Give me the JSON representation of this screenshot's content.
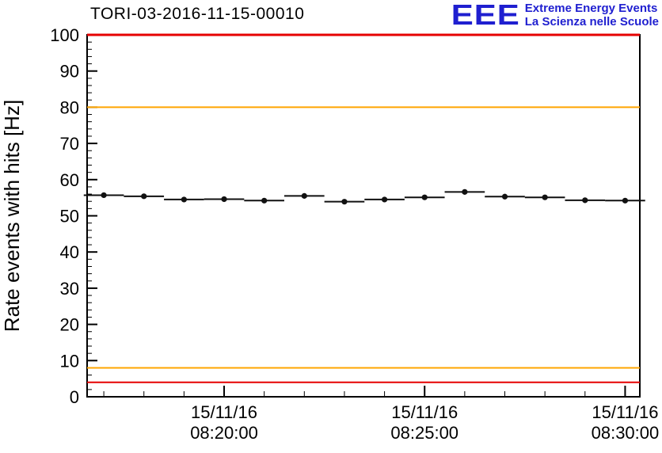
{
  "header": {
    "title": "TORI-03-2016-11-15-00010"
  },
  "logo": {
    "eee_text": "EEE",
    "line1": "Extreme Energy Events",
    "line2": "La Scienza nelle Scuole",
    "color": "#1f1fd0"
  },
  "chart_data": {
    "type": "scatter",
    "title": "TORI-03-2016-11-15-00010",
    "xlabel": "",
    "ylabel": "Rate events with hits [Hz]",
    "ylim": [
      0,
      100
    ],
    "y_major_step": 10,
    "y_minor_step": 2,
    "grid": false,
    "legend": "none",
    "x_domain_seconds": [
      995,
      1822
    ],
    "x_minor_step_seconds": 60,
    "x_ticks": [
      {
        "seconds": 1200,
        "date": "15/11/16",
        "time": "08:20:00"
      },
      {
        "seconds": 1500,
        "date": "15/11/16",
        "time": "08:25:00"
      },
      {
        "seconds": 1800,
        "date": "15/11/16",
        "time": "08:30:00"
      }
    ],
    "thresholds": [
      {
        "value": 100,
        "color": "#e60000",
        "width": 3,
        "label": "upper-red-limit"
      },
      {
        "value": 80,
        "color": "#ffa500",
        "width": 2,
        "label": "upper-orange-limit"
      },
      {
        "value": 8,
        "color": "#ffa500",
        "width": 2,
        "label": "lower-orange-limit"
      },
      {
        "value": 4,
        "color": "#e60000",
        "width": 2,
        "label": "lower-red-limit"
      }
    ],
    "marker_color": "#111111",
    "xerr_seconds": 30,
    "points": [
      {
        "time": "08:17:00",
        "seconds": 1020,
        "value": 55.7,
        "yerr": 0.7
      },
      {
        "time": "08:18:00",
        "seconds": 1080,
        "value": 55.4,
        "yerr": 0.7
      },
      {
        "time": "08:19:00",
        "seconds": 1140,
        "value": 54.5,
        "yerr": 0.7
      },
      {
        "time": "08:20:00",
        "seconds": 1200,
        "value": 54.6,
        "yerr": 0.7
      },
      {
        "time": "08:21:00",
        "seconds": 1260,
        "value": 54.2,
        "yerr": 0.7
      },
      {
        "time": "08:22:00",
        "seconds": 1320,
        "value": 55.5,
        "yerr": 0.7
      },
      {
        "time": "08:23:00",
        "seconds": 1380,
        "value": 53.9,
        "yerr": 0.7
      },
      {
        "time": "08:24:00",
        "seconds": 1440,
        "value": 54.5,
        "yerr": 0.7
      },
      {
        "time": "08:25:00",
        "seconds": 1500,
        "value": 55.1,
        "yerr": 0.7
      },
      {
        "time": "08:26:00",
        "seconds": 1560,
        "value": 56.6,
        "yerr": 0.7
      },
      {
        "time": "08:27:00",
        "seconds": 1620,
        "value": 55.3,
        "yerr": 0.7
      },
      {
        "time": "08:28:00",
        "seconds": 1680,
        "value": 55.1,
        "yerr": 0.7
      },
      {
        "time": "08:29:00",
        "seconds": 1740,
        "value": 54.3,
        "yerr": 0.7
      },
      {
        "time": "08:30:00",
        "seconds": 1800,
        "value": 54.2,
        "yerr": 0.7
      }
    ]
  }
}
